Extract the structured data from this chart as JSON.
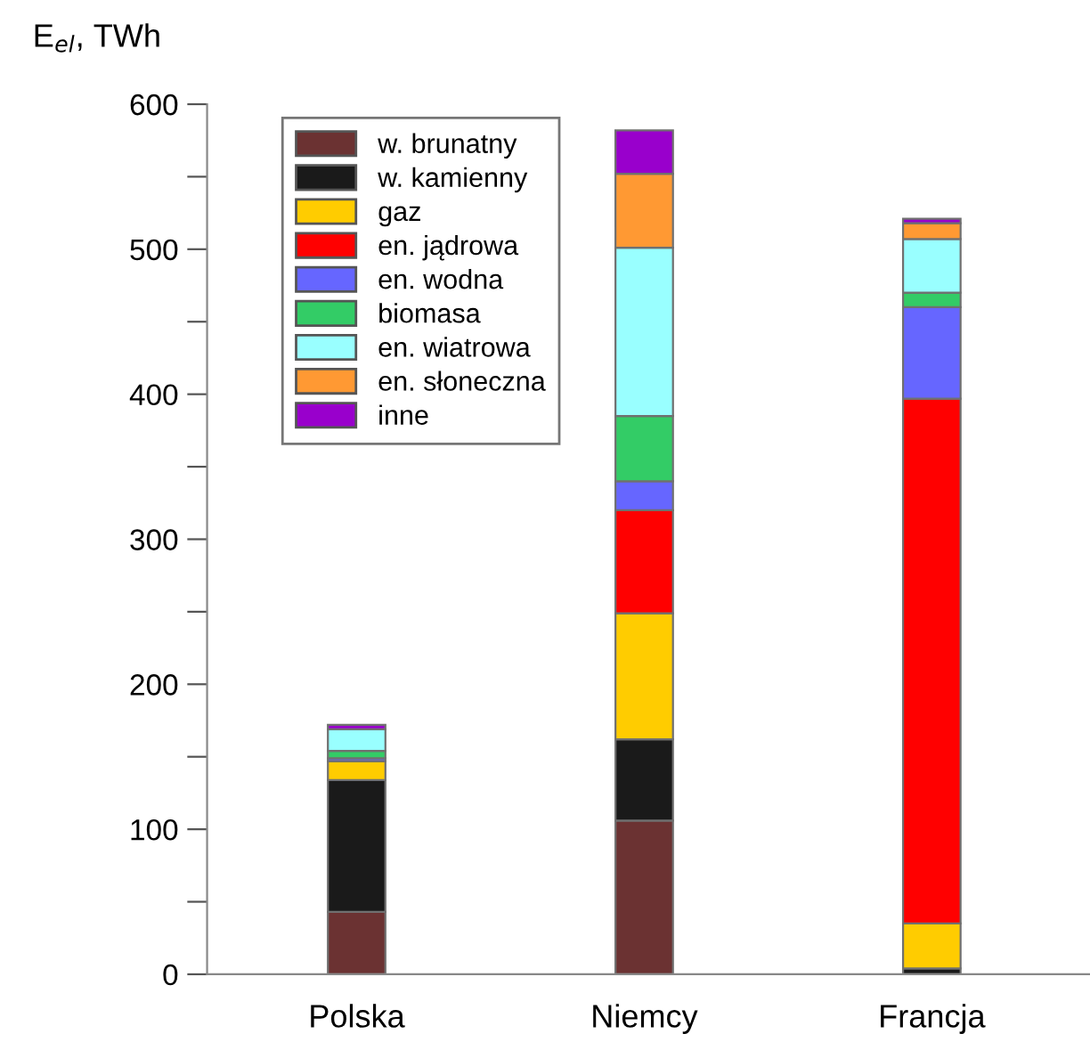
{
  "chart_data": {
    "type": "bar",
    "stacked": true,
    "ylabel": "E$_{el}$, TWh",
    "categories": [
      "Polska",
      "Niemcy",
      "Francja"
    ],
    "series": [
      {
        "name": "w. brunatny",
        "color": "#6b3232",
        "values": [
          43,
          106,
          0
        ]
      },
      {
        "name": "w. kamienny",
        "color": "#1a1a1a",
        "values": [
          91,
          56,
          4
        ]
      },
      {
        "name": "gaz",
        "color": "#ffcc00",
        "values": [
          13,
          87,
          31
        ]
      },
      {
        "name": "en. jądrowa",
        "color": "#ff0000",
        "values": [
          0,
          71,
          362
        ]
      },
      {
        "name": "en. wodna",
        "color": "#6666ff",
        "values": [
          2,
          20,
          63
        ]
      },
      {
        "name": "biomasa",
        "color": "#33cc66",
        "values": [
          5,
          45,
          10
        ]
      },
      {
        "name": "en. wiatrowa",
        "color": "#99ffff",
        "values": [
          15,
          116,
          37
        ]
      },
      {
        "name": "en. słoneczna",
        "color": "#ff9933",
        "values": [
          null,
          51,
          11
        ]
      },
      {
        "name": "inne",
        "color": "#9900cc",
        "values": [
          3,
          30,
          3
        ]
      }
    ],
    "ylim": [
      0,
      600
    ],
    "yticks": [
      0,
      {
        "value": 50,
        "label": null
      },
      100,
      {
        "value": 150,
        "label": null
      },
      200,
      {
        "value": 250,
        "label": null
      },
      300,
      {
        "value": 350,
        "label": null
      },
      400,
      {
        "value": 450,
        "label": null
      },
      500,
      {
        "value": 550,
        "label": null
      },
      600
    ],
    "legend": "top left",
    "grid": false
  }
}
